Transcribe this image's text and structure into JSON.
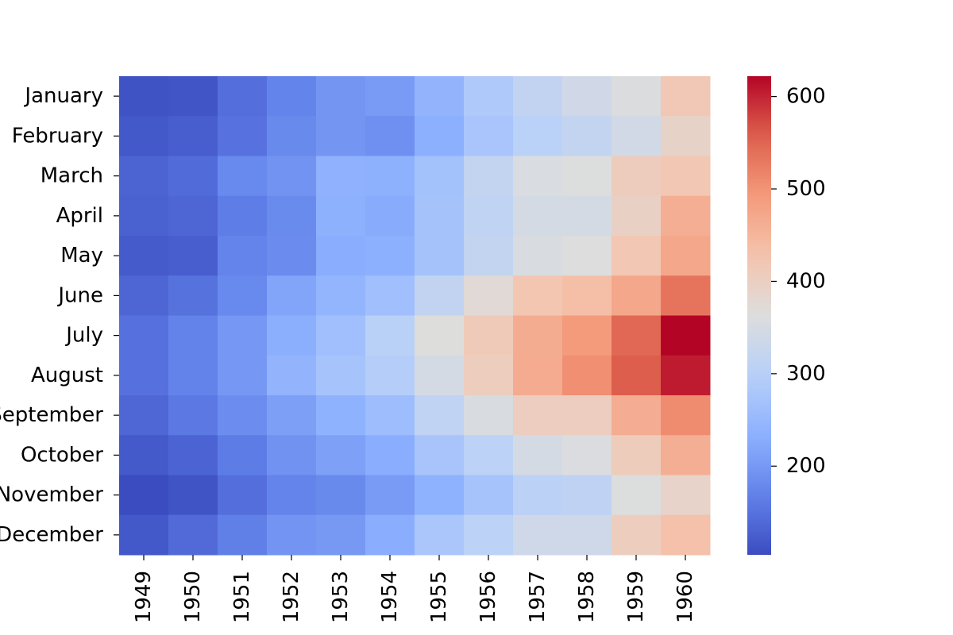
{
  "chart_data": {
    "type": "heatmap",
    "title": "",
    "xlabel": "",
    "ylabel": "",
    "x_categories": [
      "1949",
      "1950",
      "1951",
      "1952",
      "1953",
      "1954",
      "1955",
      "1956",
      "1957",
      "1958",
      "1959",
      "1960"
    ],
    "y_categories": [
      "January",
      "February",
      "March",
      "April",
      "May",
      "June",
      "July",
      "August",
      "September",
      "October",
      "November",
      "December"
    ],
    "values": [
      [
        112,
        115,
        145,
        171,
        196,
        204,
        242,
        284,
        315,
        340,
        360,
        417
      ],
      [
        118,
        126,
        150,
        180,
        196,
        188,
        233,
        277,
        301,
        318,
        342,
        391
      ],
      [
        132,
        141,
        178,
        193,
        236,
        235,
        267,
        317,
        356,
        362,
        406,
        419
      ],
      [
        129,
        135,
        163,
        181,
        235,
        227,
        269,
        313,
        348,
        348,
        396,
        461
      ],
      [
        121,
        125,
        172,
        183,
        229,
        234,
        270,
        318,
        355,
        363,
        420,
        472
      ],
      [
        135,
        149,
        178,
        218,
        243,
        264,
        315,
        374,
        422,
        435,
        472,
        535
      ],
      [
        148,
        170,
        199,
        230,
        264,
        302,
        364,
        413,
        465,
        491,
        548,
        622
      ],
      [
        148,
        170,
        199,
        242,
        272,
        293,
        347,
        405,
        467,
        505,
        559,
        606
      ],
      [
        136,
        158,
        184,
        209,
        237,
        259,
        312,
        355,
        404,
        404,
        463,
        508
      ],
      [
        119,
        133,
        162,
        191,
        211,
        229,
        274,
        306,
        347,
        359,
        407,
        461
      ],
      [
        104,
        114,
        146,
        172,
        180,
        203,
        237,
        271,
        305,
        310,
        362,
        390
      ],
      [
        118,
        140,
        166,
        194,
        201,
        229,
        278,
        306,
        336,
        337,
        405,
        432
      ]
    ],
    "colormap": "coolwarm",
    "colorbar": {
      "vmin": 104,
      "vmax": 622,
      "ticks": [
        200,
        300,
        400,
        500,
        600
      ],
      "tick_labels": [
        "200",
        "300",
        "400",
        "500",
        "600"
      ]
    },
    "grid": false,
    "legend": "colorbar-right"
  }
}
